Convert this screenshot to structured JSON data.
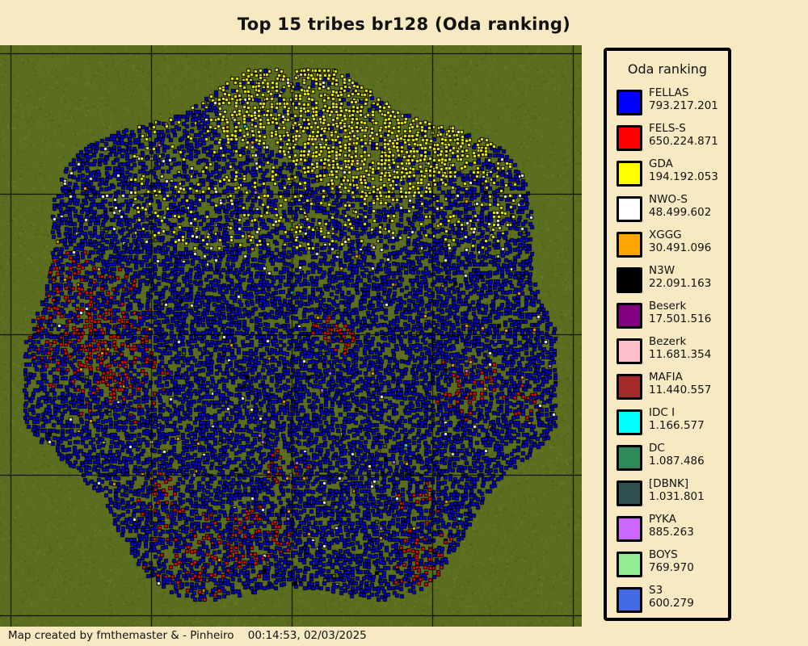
{
  "title": "Top 15 tribes br128 (Oda ranking)",
  "legend": {
    "title": "Oda ranking",
    "items": [
      {
        "name": "FELLAS",
        "points": "793.217.201",
        "color": "#0000ff"
      },
      {
        "name": "FELS-S",
        "points": "650.224.871",
        "color": "#ff0000"
      },
      {
        "name": "GDA",
        "points": "194.192.053",
        "color": "#ffff00"
      },
      {
        "name": "NWO-S",
        "points": "48.499.602",
        "color": "#ffffff"
      },
      {
        "name": "XGGG",
        "points": "30.491.096",
        "color": "#ffa500"
      },
      {
        "name": "N3W",
        "points": "22.091.163",
        "color": "#000000"
      },
      {
        "name": "Beserk",
        "points": "17.501.516",
        "color": "#800080"
      },
      {
        "name": "Bezerk",
        "points": "11.681.354",
        "color": "#ffc0cb"
      },
      {
        "name": "MAFIA",
        "points": "11.440.557",
        "color": "#a52a2a"
      },
      {
        "name": "IDC I",
        "points": "1.166.577",
        "color": "#00ffff"
      },
      {
        "name": "DC",
        "points": "1.087.486",
        "color": "#2e8b57"
      },
      {
        "name": "[DBNK]",
        "points": "1.031.801",
        "color": "#2f4f4f"
      },
      {
        "name": "PYKA",
        "points": "885.263",
        "color": "#cc66ff"
      },
      {
        "name": "BOYS",
        "points": "769.970",
        "color": "#90ee90"
      },
      {
        "name": "S3",
        "points": "600.279",
        "color": "#4169e1"
      }
    ]
  },
  "map": {
    "background_color": "#5b6e1f",
    "grid_color": "#000000",
    "unclaimed_color": "#586b1c"
  },
  "footer": {
    "credit": "Map created by fmthemaster & - Pinheiro",
    "timestamp": "00:14:53, 02/03/2025"
  }
}
